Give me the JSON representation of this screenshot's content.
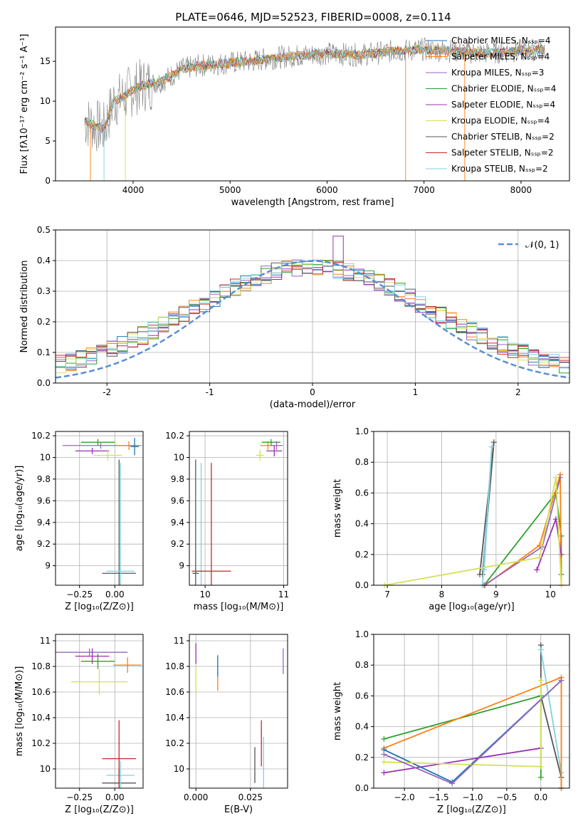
{
  "figure_title": "PLATE=0646, MJD=52523, FIBERID=0008, z=0.114",
  "colors": {
    "chabrier_miles": "#1f77b4",
    "salpeter_miles": "#ff7f0e",
    "kroupa_miles": "#9467bd",
    "chabrier_elodie": "#2ca02c",
    "salpeter_elodie": "#9b30b5",
    "kroupa_elodie": "#d4e157",
    "chabrier_stelib": "#555555",
    "salpeter_stelib": "#c62828",
    "kroupa_stelib": "#80d0e0",
    "gaussian": "#5a8ed6",
    "grid": "#b0b0b0"
  },
  "chart_data": [
    {
      "id": "spectrum",
      "type": "line",
      "xlabel": "wavelength [Angstrom, rest frame]",
      "ylabel": "Flux [fλ10⁻¹⁷ erg cm⁻² s⁻¹ A⁻¹]",
      "xlim": [
        3200,
        8500
      ],
      "ylim": [
        0,
        19.3
      ],
      "xticks": [
        4000,
        5000,
        6000,
        7000,
        8000
      ],
      "yticks": [
        0,
        5,
        10,
        15
      ],
      "legend_position": "right",
      "legend": [
        "Chabrier MILES, Nₛₛₚ=4",
        "Salpeter MILES, Nₛₛₚ=4",
        "Kroupa MILES, Nₛₛₚ=3",
        "Chabrier ELODIE, Nₛₛₚ=4",
        "Salpeter ELODIE, Nₛₛₚ=4",
        "Kroupa ELODIE, Nₛₛₚ=4",
        "Chabrier STELIB, Nₛₛₚ=2",
        "Salpeter STELIB, Nₛₛₚ=2",
        "Kroupa STELIB, Nₛₛₚ=2"
      ],
      "continuum": [
        [
          3500,
          7.5
        ],
        [
          3700,
          6.5
        ],
        [
          3800,
          10
        ],
        [
          3900,
          10.5
        ],
        [
          4000,
          11.5
        ],
        [
          4100,
          12
        ],
        [
          4300,
          12.5
        ],
        [
          4500,
          14
        ],
        [
          4700,
          14.5
        ],
        [
          5000,
          14.8
        ],
        [
          5200,
          15
        ],
        [
          5500,
          15.5
        ],
        [
          5800,
          15.8
        ],
        [
          6000,
          16
        ],
        [
          6300,
          15.8
        ],
        [
          6500,
          16
        ],
        [
          6700,
          16.3
        ],
        [
          7000,
          16.5
        ],
        [
          7300,
          16.3
        ],
        [
          7600,
          16
        ],
        [
          7900,
          16.3
        ],
        [
          8250,
          16.5
        ]
      ]
    },
    {
      "id": "residuals",
      "type": "histogram",
      "xlabel": "(data-model)/error",
      "ylabel": "Normed distribution",
      "xlim": [
        -2.5,
        2.5
      ],
      "ylim": [
        0,
        0.5
      ],
      "xticks": [
        -2,
        -1,
        0,
        1,
        2
      ],
      "yticks": [
        0.0,
        0.1,
        0.2,
        0.3,
        0.4,
        0.5
      ],
      "legend": [
        "𝒩(0, 1)"
      ],
      "legend_position": "top-right",
      "bin_width": 0.1,
      "peak_value": 0.48,
      "peak_center": 0.25
    },
    {
      "id": "age-vs-Z",
      "type": "scatter",
      "xlabel": "Z [log₁₀(Z/Z⊙)]",
      "ylabel": "age  [log₁₀(age/yr)]",
      "xlim": [
        -0.42,
        0.2
      ],
      "ylim": [
        8.82,
        10.24
      ],
      "xticks": [
        -0.25,
        0.0
      ],
      "xticklabels": [
        "−0.25",
        "0.00"
      ],
      "yticks": [
        9.0,
        9.2,
        9.4,
        9.6,
        9.8,
        10.0,
        10.2
      ],
      "points": [
        {
          "series": "chabrier_stelib",
          "x": 0.03,
          "y": 8.93,
          "ex": 0.12,
          "ey": 1.05
        },
        {
          "series": "kroupa_stelib",
          "x": 0.04,
          "y": 8.95,
          "ex": 0.1,
          "ey": 1.0
        },
        {
          "series": "chabrier_elodie",
          "x": -0.12,
          "y": 10.14,
          "ex": 0.12,
          "ey": 0.03
        },
        {
          "series": "salpeter_elodie",
          "x": -0.16,
          "y": 10.06,
          "ex": 0.12,
          "ey": 0.03
        },
        {
          "series": "kroupa_elodie",
          "x": -0.05,
          "y": 10.02,
          "ex": 0.1,
          "ey": 0.05
        },
        {
          "series": "kroupa_miles",
          "x": -0.1,
          "y": 10.11,
          "ex": 0.27,
          "ey": 0.03
        },
        {
          "series": "salpeter_miles",
          "x": 0.1,
          "y": 10.11,
          "ex": 0.09,
          "ey": 0.04
        },
        {
          "series": "chabrier_miles",
          "x": 0.14,
          "y": 10.1,
          "ex": 0.03,
          "ey": 0.08
        }
      ]
    },
    {
      "id": "age-vs-mass",
      "type": "scatter",
      "xlabel": "mass [log₁₀(M/M⊙)]",
      "ylabel": "",
      "xlim": [
        9.8,
        11.05
      ],
      "ylim": [
        8.82,
        10.24
      ],
      "xticks": [
        10,
        11
      ],
      "yticks": [
        9.0,
        9.2,
        9.4,
        9.6,
        9.8,
        10.0,
        10.2
      ],
      "points": [
        {
          "series": "chabrier_stelib",
          "x": 9.88,
          "y": 8.93,
          "ex": 0.04,
          "ey": 1.05
        },
        {
          "series": "kroupa_stelib",
          "x": 9.95,
          "y": 8.95,
          "ex": 0.07,
          "ey": 1.0
        },
        {
          "series": "salpeter_stelib",
          "x": 10.08,
          "y": 8.95,
          "ex": 0.25,
          "ey": 1.0
        },
        {
          "series": "salpeter_miles",
          "x": 10.8,
          "y": 10.11,
          "ex": 0.1,
          "ey": 0.04
        },
        {
          "series": "chabrier_elodie",
          "x": 10.84,
          "y": 10.14,
          "ex": 0.12,
          "ey": 0.03
        },
        {
          "series": "salpeter_elodie",
          "x": 10.88,
          "y": 10.06,
          "ex": 0.1,
          "ey": 0.05
        },
        {
          "series": "kroupa_elodie",
          "x": 10.7,
          "y": 10.02,
          "ex": 0.05,
          "ey": 0.05
        },
        {
          "series": "kroupa_miles",
          "x": 10.91,
          "y": 10.11,
          "ex": 0.08,
          "ey": 0.04
        }
      ]
    },
    {
      "id": "weight-vs-age",
      "type": "line",
      "xlabel": "age  [log₁₀(age/yr)]",
      "ylabel": "mass weight",
      "xlim": [
        6.75,
        10.35
      ],
      "ylim": [
        0,
        1
      ],
      "xticks": [
        7,
        8,
        9,
        10
      ],
      "yticks": [
        0.0,
        0.2,
        0.4,
        0.6,
        0.8,
        1.0
      ],
      "series": [
        {
          "key": "chabrier_stelib",
          "x": [
            8.7,
            8.96,
            8.75
          ],
          "y": [
            0.07,
            0.93,
            0.07
          ]
        },
        {
          "key": "kroupa_stelib",
          "x": [
            8.75,
            8.92,
            8.78
          ],
          "y": [
            0.0,
            0.9,
            0.1
          ]
        },
        {
          "key": "chabrier_elodie",
          "x": [
            8.78,
            10.1,
            10.2,
            10.2
          ],
          "y": [
            0.0,
            0.6,
            0.32,
            0.07
          ]
        },
        {
          "key": "salpeter_miles",
          "x": [
            8.8,
            9.8,
            10.18,
            10.2
          ],
          "y": [
            0.0,
            0.26,
            0.72,
            0.0
          ]
        },
        {
          "key": "kroupa_miles",
          "x": [
            8.78,
            9.85,
            10.18
          ],
          "y": [
            0.0,
            0.25,
            0.7
          ]
        },
        {
          "key": "salpeter_elodie",
          "x": [
            9.75,
            10.1,
            10.2
          ],
          "y": [
            0.1,
            0.43,
            0.2
          ]
        },
        {
          "key": "kroupa_elodie",
          "x": [
            6.95,
            9.8,
            10.1,
            10.2
          ],
          "y": [
            0.0,
            0.18,
            0.7,
            0.0
          ]
        }
      ]
    },
    {
      "id": "mass-vs-Z",
      "type": "scatter",
      "xlabel": "Z [log₁₀(Z/Z⊙)]",
      "ylabel": "mass [log₁₀(M/M⊙)]",
      "xlim": [
        -0.42,
        0.2
      ],
      "ylim": [
        9.85,
        11.05
      ],
      "xticks": [
        -0.25,
        0.0
      ],
      "xticklabels": [
        "−0.25",
        "0.00"
      ],
      "yticks": [
        10.0,
        10.2,
        10.4,
        10.6,
        10.8,
        11.0
      ],
      "points": [
        {
          "series": "chabrier_stelib",
          "x": 0.03,
          "y": 9.89,
          "ex": 0.12,
          "ey": 0.11
        },
        {
          "series": "kroupa_stelib",
          "x": 0.04,
          "y": 9.95,
          "ex": 0.1,
          "ey": 0.11
        },
        {
          "series": "salpeter_stelib",
          "x": 0.03,
          "y": 10.08,
          "ex": 0.12,
          "ey": 0.3
        },
        {
          "series": "kroupa_miles",
          "x": -0.18,
          "y": 10.91,
          "ex": 0.27,
          "ey": 0.03
        },
        {
          "series": "salpeter_elodie",
          "x": -0.16,
          "y": 10.88,
          "ex": 0.12,
          "ey": 0.06
        },
        {
          "series": "chabrier_elodie",
          "x": -0.12,
          "y": 10.84,
          "ex": 0.12,
          "ey": 0.06
        },
        {
          "series": "kroupa_elodie",
          "x": -0.11,
          "y": 10.68,
          "ex": 0.2,
          "ey": 0.1
        },
        {
          "series": "salpeter_miles",
          "x": 0.09,
          "y": 10.81,
          "ex": 0.1,
          "ey": 0.06
        }
      ]
    },
    {
      "id": "mass-vs-EBV",
      "type": "scatter",
      "xlabel": "E(B-V)",
      "ylabel": "",
      "xlim": [
        -0.003,
        0.042
      ],
      "ylim": [
        9.85,
        11.05
      ],
      "xticks": [
        0.0,
        0.025
      ],
      "xticklabels": [
        "0.000",
        "0.025"
      ],
      "yticks": [
        10.0,
        10.2,
        10.4,
        10.6,
        10.8,
        11.0
      ],
      "points": [
        {
          "series": "chabrier_stelib",
          "x": 0.027,
          "y": 10.03,
          "ey": 0.14
        },
        {
          "series": "salpeter_stelib",
          "x": 0.03,
          "y": 10.2,
          "ey": 0.18
        },
        {
          "series": "kroupa_stelib",
          "x": 0.031,
          "y": 10.05,
          "ey": 0.2
        },
        {
          "series": "salpeter_elodie",
          "x": 0.0,
          "y": 10.9,
          "ey": 0.08
        },
        {
          "series": "kroupa_elodie",
          "x": 0.0,
          "y": 10.7,
          "ey": 0.1
        },
        {
          "series": "salpeter_miles",
          "x": 0.01,
          "y": 10.75,
          "ey": 0.14
        },
        {
          "series": "chabrier_miles",
          "x": 0.01,
          "y": 10.8,
          "ey": 0.08
        },
        {
          "series": "kroupa_miles",
          "x": 0.04,
          "y": 10.84,
          "ey": 0.1
        }
      ]
    },
    {
      "id": "weight-vs-Z",
      "type": "line",
      "xlabel": "Z [log₁₀(Z/Z⊙)]",
      "ylabel": "mass weight",
      "xlim": [
        -2.45,
        0.42
      ],
      "ylim": [
        0,
        1
      ],
      "xticks": [
        -2.0,
        -1.5,
        -1.0,
        -0.5,
        0.0
      ],
      "xticklabels": [
        "−2.0",
        "−1.5",
        "−1.0",
        "−0.5",
        "0.0"
      ],
      "yticks": [
        0.0,
        0.2,
        0.4,
        0.6,
        0.8,
        1.0
      ],
      "series": [
        {
          "key": "chabrier_stelib",
          "x": [
            0.0,
            0.0,
            0.3,
            0.3
          ],
          "y": [
            0.93,
            0.6,
            0.07,
            0.0
          ]
        },
        {
          "key": "kroupa_stelib",
          "x": [
            0.0,
            0.3,
            0.3
          ],
          "y": [
            0.9,
            0.1,
            0.0
          ]
        },
        {
          "key": "chabrier_elodie",
          "x": [
            -2.3,
            0.0,
            0.0
          ],
          "y": [
            0.32,
            0.6,
            0.07
          ]
        },
        {
          "key": "salpeter_miles",
          "x": [
            -2.3,
            0.3,
            0.3
          ],
          "y": [
            0.26,
            0.72,
            0.0
          ]
        },
        {
          "key": "chabrier_miles",
          "x": [
            -2.3,
            -1.3,
            0.3
          ],
          "y": [
            0.25,
            0.04,
            0.7
          ]
        },
        {
          "key": "salpeter_elodie",
          "x": [
            -2.3,
            0.0
          ],
          "y": [
            0.1,
            0.26
          ]
        },
        {
          "key": "kroupa_elodie",
          "x": [
            -2.3,
            0.0,
            0.0
          ],
          "y": [
            0.17,
            0.14,
            0.7
          ]
        },
        {
          "key": "kroupa_miles",
          "x": [
            -2.3,
            -1.3,
            0.3
          ],
          "y": [
            0.22,
            0.03,
            0.7
          ]
        }
      ]
    }
  ]
}
